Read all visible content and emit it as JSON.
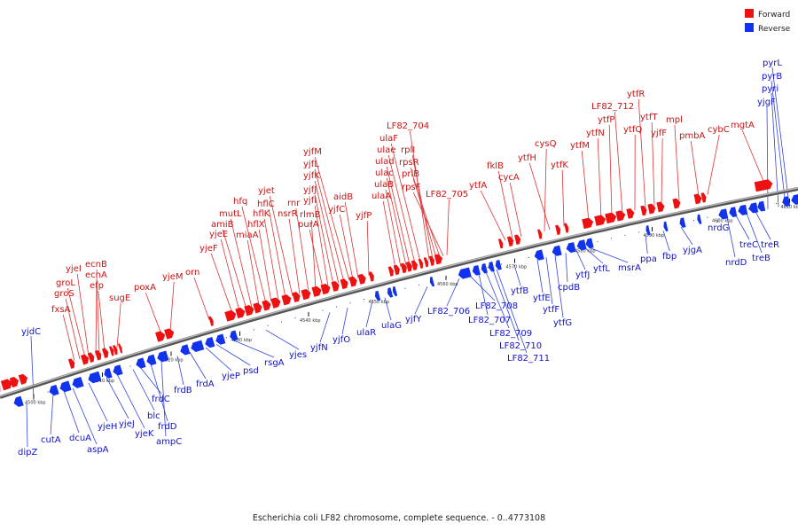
{
  "legend": {
    "forward_label": "Forward",
    "reverse_label": "Reverse",
    "forward_color": "#ee1111",
    "reverse_color": "#1133ee"
  },
  "caption": "Escherichia coli LF82 chromosome, complete sequence. - 0..4773108",
  "map": {
    "axis_unit": "kbp",
    "ticks": [
      4500,
      4510,
      4520,
      4530,
      4540,
      4550,
      4560,
      4570,
      4580,
      4590,
      4600,
      4610
    ]
  },
  "forward_genes": [
    "fxsA",
    "groS",
    "groL",
    "yjeI",
    "ecnB",
    "ecnA",
    "efp",
    "sugE",
    "poxA",
    "yjeM",
    "orn",
    "yjeF",
    "yjeE",
    "amiB",
    "mutL",
    "miaA",
    "hfq",
    "hflX",
    "hflK",
    "hflC",
    "yjet",
    "nsrR",
    "rnr",
    "rlmB",
    "purA",
    "yjfI",
    "yjfJ",
    "yjfK",
    "yjfL",
    "yjfM",
    "yjfC",
    "aidB",
    "yjfP",
    "ulaA",
    "ulaB",
    "ulac",
    "ulad",
    "ulae",
    "ulaF",
    "LF82_704",
    "rplI",
    "rpsR",
    "priB",
    "rpsF",
    "LF82_705",
    "ytfA",
    "fklB",
    "cycA",
    "cysQ",
    "ytfH",
    "ytfK",
    "ytfM",
    "ytfN",
    "ytfP",
    "LF82_712",
    "ytfQ",
    "ytfR",
    "ytfT",
    "yjfF",
    "mpl",
    "pmbA",
    "cybC",
    "mgtA"
  ],
  "reverse_genes": [
    "yjdC",
    "dipZ",
    "cutA",
    "dcuA",
    "aspA",
    "yjeH",
    "yjeJ",
    "yjeK",
    "blc",
    "frdC",
    "frdD",
    "ampC",
    "frdB",
    "frdA",
    "yjeP",
    "psd",
    "rsgA",
    "yjes",
    "yjfN",
    "yjfO",
    "ulaR",
    "ulaG",
    "yjfY",
    "LF82_706",
    "LF82_708",
    "LF82_707",
    "LF82_709",
    "LF82_710",
    "LF82_711",
    "ytfB",
    "ytfE",
    "ytfF",
    "ytfG",
    "cpdB",
    "ytfJ",
    "ytfL",
    "msrA",
    "ppa",
    "fbp",
    "yjgA",
    "nrdG",
    "nrdD",
    "treC",
    "treB",
    "treR",
    "yjgF",
    "pyri",
    "pyrB",
    "pyrL"
  ]
}
